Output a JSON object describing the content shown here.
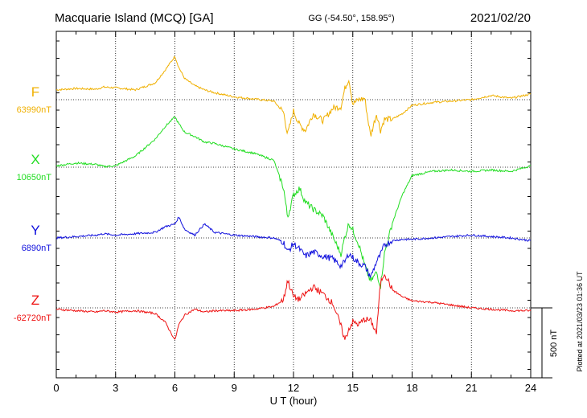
{
  "header": {
    "station": "Macquarie Island (MCQ)  [GA]",
    "coords": "GG (-54.50°, 158.95°)",
    "date": "2021/02/20"
  },
  "footer": {
    "plotted": "Plotted at 2021/03/23 01:36 UT"
  },
  "chart_data": {
    "type": "line",
    "xlabel": "U T (hour)",
    "xlim": [
      0,
      24
    ],
    "xticks": [
      "0",
      "3",
      "6",
      "9",
      "12",
      "15",
      "18",
      "21",
      "24"
    ],
    "scale_bar": {
      "label": "500 nT",
      "value_nT": 500
    },
    "grid": true,
    "series": [
      {
        "name": "F",
        "baseline_label": "63990nT",
        "baseline_nT": 63990,
        "color": "#f0b000",
        "x": [
          0,
          1,
          2,
          2.4,
          3,
          4,
          5,
          5.5,
          6,
          6.2,
          6.5,
          7,
          7.5,
          8,
          9,
          10,
          11,
          11.5,
          11.7,
          12,
          12.3,
          12.6,
          13,
          13.5,
          14,
          14.4,
          14.6,
          14.8,
          15,
          15.3,
          15.6,
          15.9,
          16.2,
          16.4,
          16.6,
          17,
          17.5,
          18,
          19,
          20,
          21,
          22,
          23,
          24
        ],
        "y": [
          70,
          80,
          75,
          90,
          85,
          70,
          120,
          210,
          310,
          230,
          150,
          100,
          70,
          50,
          20,
          5,
          -10,
          -90,
          -250,
          -80,
          -180,
          -220,
          -100,
          -150,
          -60,
          -50,
          80,
          150,
          -30,
          0,
          10,
          -260,
          -100,
          -220,
          -140,
          -140,
          -100,
          -40,
          -20,
          -10,
          0,
          30,
          10,
          40
        ]
      },
      {
        "name": "X",
        "baseline_label": "10650nT",
        "baseline_nT": 10650,
        "color": "#22dd22",
        "x": [
          0,
          1,
          2,
          2.4,
          3,
          4,
          5,
          5.5,
          6,
          6.2,
          6.5,
          7,
          7.5,
          8,
          9,
          10,
          11,
          11.5,
          11.7,
          12,
          12.3,
          12.6,
          13,
          13.5,
          14,
          14.4,
          14.6,
          14.8,
          15,
          15.3,
          15.6,
          15.9,
          16.2,
          16.4,
          16.6,
          17,
          17.5,
          18,
          19,
          20,
          21,
          22,
          23,
          24
        ],
        "y": [
          10,
          30,
          20,
          5,
          10,
          80,
          200,
          290,
          360,
          310,
          250,
          220,
          180,
          170,
          130,
          100,
          50,
          -150,
          -360,
          -200,
          -150,
          -250,
          -300,
          -350,
          -500,
          -620,
          -500,
          -400,
          -450,
          -550,
          -700,
          -820,
          -750,
          -850,
          -620,
          -400,
          -200,
          -60,
          -30,
          -20,
          -30,
          -20,
          -30,
          10
        ]
      },
      {
        "name": "Y",
        "baseline_label": "6890nT",
        "baseline_nT": 6890,
        "color": "#1010dd",
        "x": [
          0,
          1,
          2,
          2.4,
          3,
          4,
          5,
          5.5,
          6,
          6.2,
          6.5,
          7,
          7.5,
          8,
          9,
          10,
          11,
          11.5,
          11.7,
          12,
          12.3,
          12.6,
          13,
          13.5,
          14,
          14.4,
          14.6,
          14.8,
          15,
          15.3,
          15.6,
          15.9,
          16.2,
          16.4,
          16.6,
          17,
          17.5,
          18,
          19,
          20,
          21,
          22,
          23,
          24
        ],
        "y": [
          0,
          10,
          20,
          30,
          20,
          30,
          40,
          80,
          100,
          150,
          60,
          20,
          100,
          40,
          20,
          10,
          0,
          -30,
          -100,
          -40,
          -80,
          -130,
          -100,
          -130,
          -150,
          -200,
          -170,
          -110,
          -140,
          -180,
          -200,
          -280,
          -170,
          -120,
          -50,
          -20,
          -10,
          -10,
          0,
          10,
          20,
          10,
          0,
          -20
        ]
      },
      {
        "name": "Z",
        "baseline_label": "-62720nT",
        "baseline_nT": -62720,
        "color": "#ee1111",
        "x": [
          0,
          1,
          2,
          2.4,
          3,
          4,
          5,
          5.5,
          6,
          6.2,
          6.5,
          7,
          7.5,
          8,
          9,
          10,
          11,
          11.5,
          11.7,
          12,
          12.3,
          12.6,
          13,
          13.5,
          14,
          14.4,
          14.6,
          14.8,
          15,
          15.3,
          15.6,
          15.9,
          16.2,
          16.4,
          16.6,
          17,
          17.5,
          18,
          19,
          20,
          21,
          22,
          23,
          24
        ],
        "y": [
          -10,
          -20,
          -30,
          -20,
          -30,
          -20,
          -40,
          -100,
          -230,
          -120,
          -50,
          -10,
          -30,
          -20,
          -20,
          -10,
          10,
          60,
          200,
          80,
          60,
          100,
          150,
          100,
          30,
          -130,
          -230,
          -150,
          -100,
          -120,
          -80,
          -90,
          -180,
          180,
          250,
          130,
          80,
          50,
          40,
          20,
          0,
          -10,
          -20,
          -20
        ]
      }
    ]
  }
}
